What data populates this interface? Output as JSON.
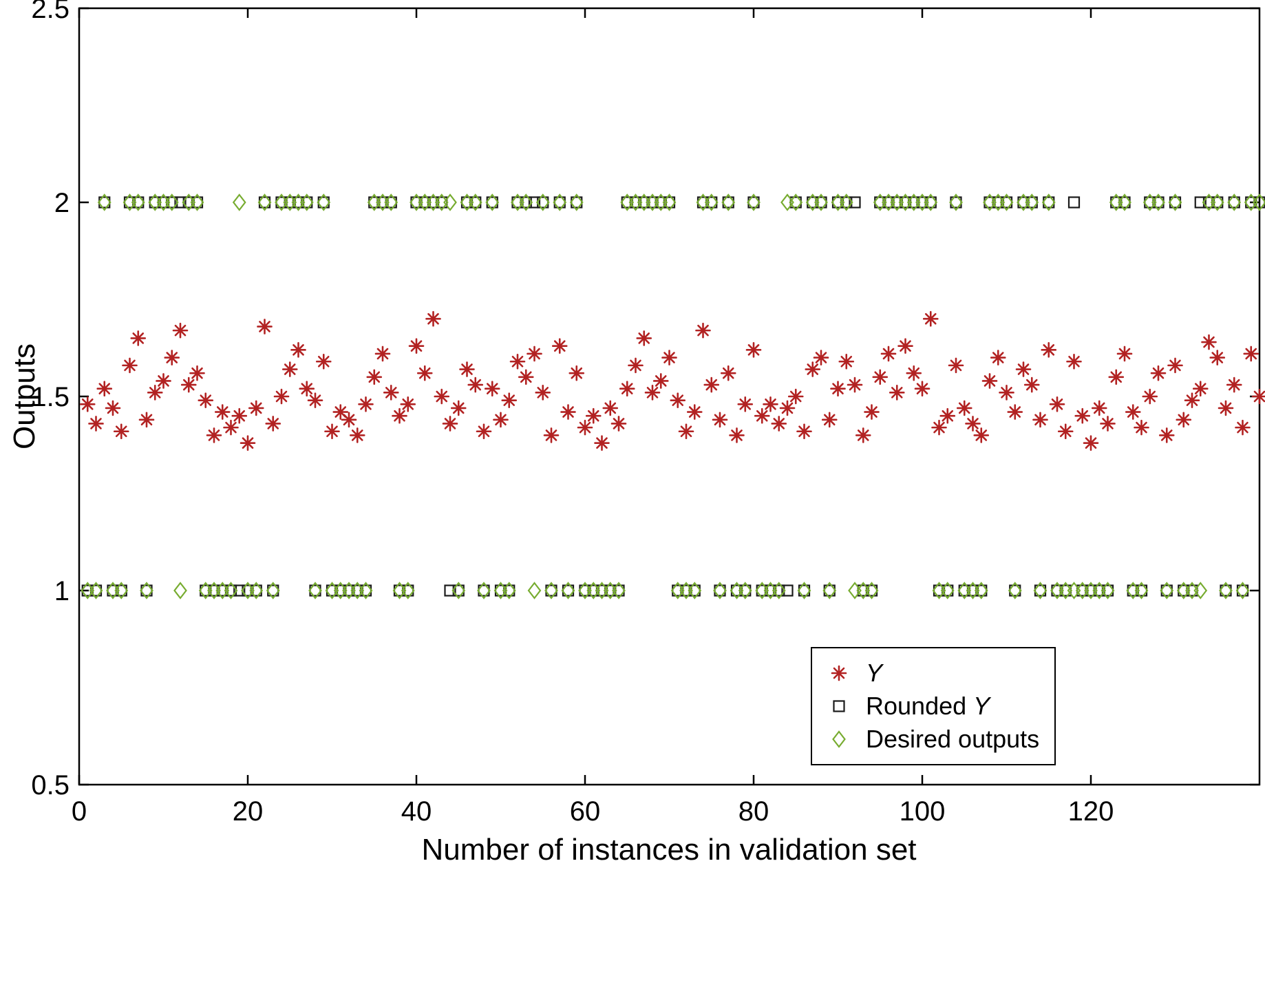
{
  "chart_data": {
    "type": "scatter",
    "title": "",
    "xlabel": "Number of instances in validation set",
    "ylabel": "Outputs",
    "xlim": [
      0,
      140
    ],
    "ylim": [
      0.5,
      2.5
    ],
    "xticks": [
      0,
      20,
      40,
      60,
      80,
      100,
      120
    ],
    "yticks": [
      0.5,
      1,
      1.5,
      2,
      2.5
    ],
    "grid": false,
    "legend_position": "bottom-right",
    "colors": {
      "y_series": "#b22222",
      "rounded_series": "#1a1a1a",
      "desired_series": "#77ac30",
      "axis": "#000000",
      "background": "#ffffff"
    },
    "x": [
      1,
      2,
      3,
      4,
      5,
      6,
      7,
      8,
      9,
      10,
      11,
      12,
      13,
      14,
      15,
      16,
      17,
      18,
      19,
      20,
      21,
      22,
      23,
      24,
      25,
      26,
      27,
      28,
      29,
      30,
      31,
      32,
      33,
      34,
      35,
      36,
      37,
      38,
      39,
      40,
      41,
      42,
      43,
      44,
      45,
      46,
      47,
      48,
      49,
      50,
      51,
      52,
      53,
      54,
      55,
      56,
      57,
      58,
      59,
      60,
      61,
      62,
      63,
      64,
      65,
      66,
      67,
      68,
      69,
      70,
      71,
      72,
      73,
      74,
      75,
      76,
      77,
      78,
      79,
      80,
      81,
      82,
      83,
      84,
      85,
      86,
      87,
      88,
      89,
      90,
      91,
      92,
      93,
      94,
      95,
      96,
      97,
      98,
      99,
      100,
      101,
      102,
      103,
      104,
      105,
      106,
      107,
      108,
      109,
      110,
      111,
      112,
      113,
      114,
      115,
      116,
      117,
      118,
      119,
      120,
      121,
      122,
      123,
      124,
      125,
      126,
      127,
      128,
      129,
      130,
      131,
      132,
      133,
      134,
      135,
      136,
      137,
      138,
      139,
      140
    ],
    "series": [
      {
        "name": "Y",
        "marker": "asterisk",
        "color": "#b22222",
        "values": [
          1.48,
          1.43,
          1.52,
          1.47,
          1.41,
          1.58,
          1.65,
          1.44,
          1.51,
          1.54,
          1.6,
          1.67,
          1.53,
          1.56,
          1.49,
          1.4,
          1.46,
          1.42,
          1.45,
          1.38,
          1.47,
          1.68,
          1.43,
          1.5,
          1.57,
          1.62,
          1.52,
          1.49,
          1.59,
          1.41,
          1.46,
          1.44,
          1.4,
          1.48,
          1.55,
          1.61,
          1.51,
          1.45,
          1.48,
          1.63,
          1.56,
          1.7,
          1.5,
          1.43,
          1.47,
          1.57,
          1.53,
          1.41,
          1.52,
          1.44,
          1.49,
          1.59,
          1.55,
          1.61,
          1.51,
          1.4,
          1.63,
          1.46,
          1.56,
          1.42,
          1.45,
          1.38,
          1.47,
          1.43,
          1.52,
          1.58,
          1.65,
          1.51,
          1.54,
          1.6,
          1.49,
          1.41,
          1.46,
          1.67,
          1.53,
          1.44,
          1.56,
          1.4,
          1.48,
          1.62,
          1.45,
          1.48,
          1.43,
          1.47,
          1.5,
          1.41,
          1.57,
          1.6,
          1.44,
          1.52,
          1.59,
          1.53,
          1.4,
          1.46,
          1.55,
          1.61,
          1.51,
          1.63,
          1.56,
          1.52,
          1.7,
          1.42,
          1.45,
          1.58,
          1.47,
          1.43,
          1.4,
          1.54,
          1.6,
          1.51,
          1.46,
          1.57,
          1.53,
          1.44,
          1.62,
          1.48,
          1.41,
          1.59,
          1.45,
          1.38,
          1.47,
          1.43,
          1.55,
          1.61,
          1.46,
          1.42,
          1.5,
          1.56,
          1.4,
          1.58,
          1.44,
          1.49,
          1.52,
          1.64,
          1.6,
          1.47,
          1.53,
          1.42,
          1.61,
          1.5
        ]
      },
      {
        "name": "Rounded Y",
        "marker": "square",
        "color": "#1a1a1a",
        "values": [
          1,
          1,
          2,
          1,
          1,
          2,
          2,
          1,
          2,
          2,
          2,
          2,
          2,
          2,
          1,
          1,
          1,
          1,
          1,
          1,
          1,
          2,
          1,
          2,
          2,
          2,
          2,
          1,
          2,
          1,
          1,
          1,
          1,
          1,
          2,
          2,
          2,
          1,
          1,
          2,
          2,
          2,
          2,
          1,
          1,
          2,
          2,
          1,
          2,
          1,
          1,
          2,
          2,
          2,
          2,
          1,
          2,
          1,
          2,
          1,
          1,
          1,
          1,
          1,
          2,
          2,
          2,
          2,
          2,
          2,
          1,
          1,
          1,
          2,
          2,
          1,
          2,
          1,
          1,
          2,
          1,
          1,
          1,
          1,
          2,
          1,
          2,
          2,
          1,
          2,
          2,
          2,
          1,
          1,
          2,
          2,
          2,
          2,
          2,
          2,
          2,
          1,
          1,
          2,
          1,
          1,
          1,
          2,
          2,
          2,
          1,
          2,
          2,
          1,
          2,
          1,
          1,
          2,
          1,
          1,
          1,
          1,
          2,
          2,
          1,
          1,
          2,
          2,
          1,
          2,
          1,
          1,
          2,
          2,
          2,
          1,
          2,
          1,
          2,
          2
        ]
      },
      {
        "name": "Desired outputs",
        "marker": "diamond",
        "color": "#77ac30",
        "values": [
          1,
          1,
          2,
          1,
          1,
          2,
          2,
          1,
          2,
          2,
          2,
          1,
          2,
          2,
          1,
          1,
          1,
          1,
          2,
          1,
          1,
          2,
          1,
          2,
          2,
          2,
          2,
          1,
          2,
          1,
          1,
          1,
          1,
          1,
          2,
          2,
          2,
          1,
          1,
          2,
          2,
          2,
          2,
          2,
          1,
          2,
          2,
          1,
          2,
          1,
          1,
          2,
          2,
          1,
          2,
          1,
          2,
          1,
          2,
          1,
          1,
          1,
          1,
          1,
          2,
          2,
          2,
          2,
          2,
          2,
          1,
          1,
          1,
          2,
          2,
          1,
          2,
          1,
          1,
          2,
          1,
          1,
          1,
          2,
          2,
          1,
          2,
          2,
          1,
          2,
          2,
          1,
          1,
          1,
          2,
          2,
          2,
          2,
          2,
          2,
          2,
          1,
          1,
          2,
          1,
          1,
          1,
          2,
          2,
          2,
          1,
          2,
          2,
          1,
          2,
          1,
          1,
          1,
          1,
          1,
          1,
          1,
          2,
          2,
          1,
          1,
          2,
          2,
          1,
          2,
          1,
          1,
          1,
          2,
          2,
          1,
          2,
          1,
          2,
          2
        ]
      }
    ],
    "legend": {
      "entries": [
        {
          "id": "y",
          "marker": "asterisk",
          "color": "#b22222",
          "segments": [
            {
              "text": "Y",
              "italic": true
            }
          ]
        },
        {
          "id": "rounded-y",
          "marker": "square",
          "color": "#1a1a1a",
          "segments": [
            {
              "text": "Rounded ",
              "italic": false
            },
            {
              "text": "Y",
              "italic": true
            }
          ]
        },
        {
          "id": "desired-outputs",
          "marker": "diamond",
          "color": "#77ac30",
          "segments": [
            {
              "text": "Desired outputs",
              "italic": false
            }
          ]
        }
      ]
    }
  }
}
